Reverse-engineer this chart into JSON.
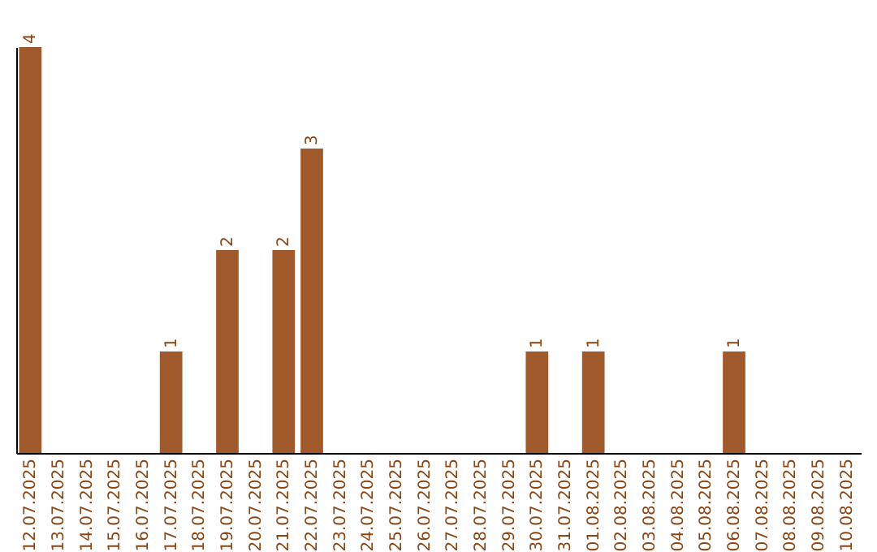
{
  "chart_data": {
    "type": "bar",
    "categories": [
      "12.07.2025",
      "13.07.2025",
      "14.07.2025",
      "15.07.2025",
      "16.07.2025",
      "17.07.2025",
      "18.07.2025",
      "19.07.2025",
      "20.07.2025",
      "21.07.2025",
      "22.07.2025",
      "23.07.2025",
      "24.07.2025",
      "25.07.2025",
      "26.07.2025",
      "27.07.2025",
      "28.07.2025",
      "29.07.2025",
      "30.07.2025",
      "31.07.2025",
      "01.08.2025",
      "02.08.2025",
      "03.08.2025",
      "04.08.2025",
      "05.08.2025",
      "06.08.2025",
      "07.08.2025",
      "08.08.2025",
      "09.08.2025",
      "10.08.2025"
    ],
    "values": [
      4,
      0,
      0,
      0,
      0,
      1,
      0,
      2,
      0,
      2,
      3,
      0,
      0,
      0,
      0,
      0,
      0,
      0,
      1,
      0,
      1,
      0,
      0,
      0,
      0,
      1,
      0,
      0,
      0,
      0
    ],
    "value_labels": [
      "4",
      null,
      null,
      null,
      null,
      "1",
      null,
      "2",
      null,
      "2",
      "3",
      null,
      null,
      null,
      null,
      null,
      null,
      null,
      "1",
      null,
      "1",
      null,
      null,
      null,
      null,
      "1",
      null,
      null,
      null,
      null
    ],
    "color": "#a0592a",
    "ylim": [
      0,
      4
    ],
    "tick_labels": "x"
  }
}
